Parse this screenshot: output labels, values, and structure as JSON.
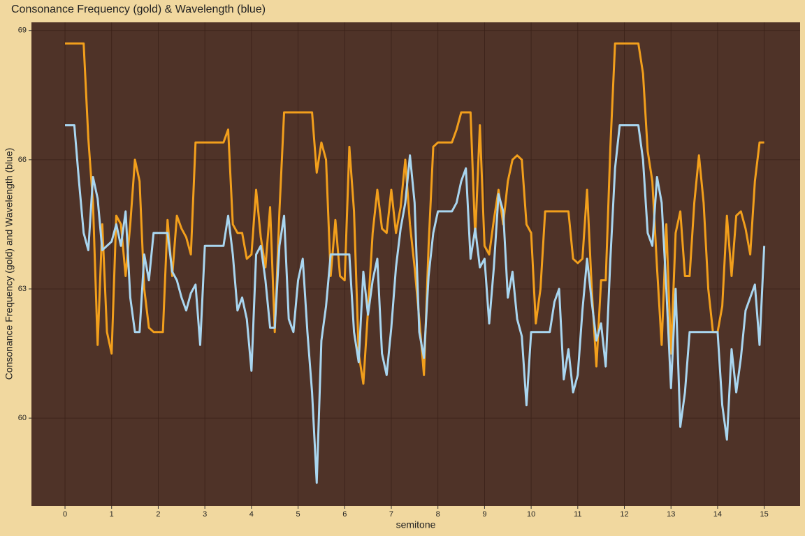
{
  "chart_data": {
    "type": "line",
    "title": "Consonance Frequency (gold) & Wavelength (blue)",
    "x_label": "semitone",
    "y_label": "Consonance Frequency (gold) and Wavelength (blue)",
    "x": [
      0,
      0.1,
      0.2,
      0.3,
      0.4,
      0.5,
      0.6,
      0.7,
      0.8,
      0.9,
      1,
      1.1,
      1.2,
      1.3,
      1.4,
      1.5,
      1.6,
      1.7,
      1.8,
      1.9,
      2,
      2.1,
      2.2,
      2.3,
      2.4,
      2.5,
      2.6,
      2.7,
      2.8,
      2.9,
      3,
      3.1,
      3.2,
      3.3,
      3.4,
      3.5,
      3.6,
      3.7,
      3.8,
      3.9,
      4,
      4.1,
      4.2,
      4.3,
      4.4,
      4.5,
      4.6,
      4.7,
      4.8,
      4.9,
      5,
      5.1,
      5.2,
      5.3,
      5.4,
      5.5,
      5.6,
      5.7,
      5.8,
      5.9,
      6,
      6.1,
      6.2,
      6.3,
      6.4,
      6.5,
      6.6,
      6.7,
      6.8,
      6.9,
      7,
      7.1,
      7.2,
      7.3,
      7.4,
      7.5,
      7.6,
      7.7,
      7.8,
      7.9,
      8,
      8.1,
      8.2,
      8.3,
      8.4,
      8.5,
      8.6,
      8.7,
      8.8,
      8.9,
      9,
      9.1,
      9.2,
      9.3,
      9.4,
      9.5,
      9.6,
      9.7,
      9.8,
      9.9,
      10,
      10.1,
      10.2,
      10.3,
      10.4,
      10.5,
      10.6,
      10.7,
      10.8,
      10.9,
      11,
      11.1,
      11.2,
      11.3,
      11.4,
      11.5,
      11.6,
      11.7,
      11.8,
      11.9,
      12,
      12.1,
      12.2,
      12.3,
      12.4,
      12.5,
      12.6,
      12.7,
      12.8,
      12.9,
      13,
      13.1,
      13.2,
      13.3,
      13.4,
      13.5,
      13.6,
      13.7,
      13.8,
      13.9,
      14,
      14.1,
      14.2,
      14.3,
      14.4,
      14.5,
      14.6,
      14.7,
      14.8,
      14.9,
      15
    ],
    "series": [
      {
        "color": "#f29f1c",
        "values": [
          68.7,
          68.7,
          68.7,
          68.7,
          68.7,
          66.5,
          65,
          61.7,
          64.5,
          62,
          61.5,
          64.7,
          64.5,
          63.3,
          64.5,
          66,
          65.5,
          63,
          62.1,
          62,
          62,
          62,
          64.6,
          63.3,
          64.7,
          64.4,
          64.2,
          63.8,
          66.4,
          66.4,
          66.4,
          66.4,
          66.4,
          66.4,
          66.4,
          66.7,
          64.5,
          64.3,
          64.3,
          63.7,
          63.8,
          65.3,
          64.2,
          63.5,
          64.9,
          62,
          64.8,
          67.1,
          67.1,
          67.1,
          67.1,
          67.1,
          67.1,
          67.1,
          65.7,
          66.4,
          66,
          63.3,
          64.6,
          63.3,
          63.2,
          66.3,
          64.8,
          61.5,
          60.8,
          62.5,
          64.3,
          65.3,
          64.4,
          64.3,
          65.3,
          64.3,
          64.9,
          66,
          64.5,
          63.5,
          62.3,
          61,
          64,
          66.3,
          66.4,
          66.4,
          66.4,
          66.4,
          66.7,
          67.1,
          67.1,
          67.1,
          64.2,
          66.8,
          64,
          63.8,
          64.6,
          65.3,
          64.5,
          65.5,
          66,
          66.1,
          66,
          64.5,
          64.3,
          62.2,
          63,
          64.8,
          64.8,
          64.8,
          64.8,
          64.8,
          64.8,
          63.7,
          63.6,
          63.7,
          65.3,
          63,
          61.2,
          63.2,
          63.2,
          66.3,
          68.7,
          68.7,
          68.7,
          68.7,
          68.7,
          68.7,
          68,
          66.2,
          65.5,
          63.5,
          61.7,
          64.5,
          61.5,
          64.3,
          64.8,
          63.3,
          63.3,
          65,
          66.1,
          65,
          63,
          62,
          62,
          62.6,
          64.7,
          63.3,
          64.7,
          64.8,
          64.4,
          63.8,
          65.5,
          66.4,
          66.4
        ]
      },
      {
        "color": "#a9d6f0",
        "values": [
          66.8,
          66.8,
          66.8,
          65.5,
          64.3,
          63.9,
          65.6,
          65.1,
          63.9,
          64,
          64.1,
          64.5,
          64,
          64.8,
          62.8,
          62,
          62,
          63.8,
          63.2,
          64.3,
          64.3,
          64.3,
          64.3,
          63.4,
          63.2,
          62.8,
          62.5,
          62.9,
          63.1,
          61.7,
          64,
          64,
          64,
          64,
          64,
          64.7,
          63.8,
          62.5,
          62.8,
          62.3,
          61.1,
          63.8,
          64,
          63.2,
          62.1,
          62.1,
          64,
          64.7,
          62.3,
          62,
          63.2,
          63.7,
          62,
          60.6,
          58.5,
          61.8,
          62.6,
          63.8,
          63.8,
          63.8,
          63.8,
          63.8,
          62,
          61.3,
          63.4,
          62.4,
          63.2,
          63.7,
          61.5,
          61,
          62.1,
          63.5,
          64.4,
          65,
          66.1,
          65,
          62,
          61.4,
          63.3,
          64.3,
          64.8,
          64.8,
          64.8,
          64.8,
          65,
          65.5,
          65.8,
          63.7,
          64.4,
          63.5,
          63.7,
          62.2,
          63.5,
          65.2,
          64.8,
          62.8,
          63.4,
          62.3,
          61.9,
          60.3,
          62,
          62,
          62,
          62,
          62,
          62.7,
          63,
          60.9,
          61.6,
          60.6,
          61,
          62.5,
          63.7,
          62.7,
          61.8,
          62.2,
          61.2,
          63.7,
          65.8,
          66.8,
          66.8,
          66.8,
          66.8,
          66.8,
          66,
          64.3,
          64,
          65.6,
          65,
          63,
          60.7,
          63,
          59.8,
          60.6,
          62,
          62,
          62,
          62,
          62,
          62,
          62,
          60.3,
          59.5,
          61.6,
          60.6,
          61.4,
          62.5,
          62.8,
          63.1,
          61.7,
          64
        ]
      }
    ],
    "xlim": [
      -0.72,
      15.77
    ],
    "xticks": [
      0,
      1,
      2,
      3,
      4,
      5,
      6,
      7,
      8,
      9,
      10,
      11,
      12,
      13,
      14,
      15
    ],
    "ylim": [
      57.96,
      69.19
    ],
    "yticks": [
      60,
      63,
      66,
      69
    ],
    "grid": true
  }
}
